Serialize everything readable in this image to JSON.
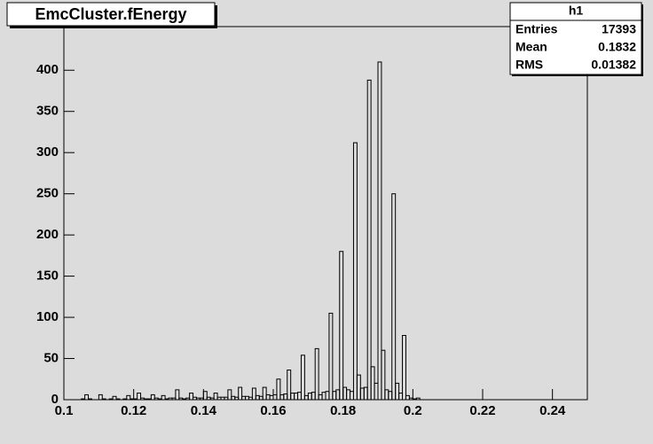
{
  "chart_data": {
    "type": "histogram",
    "title": "EmcCluster.fEnergy",
    "bins": [
      0.1,
      0.101,
      0.102,
      0.103,
      0.104,
      0.105,
      0.106,
      0.107,
      0.108,
      0.109,
      0.11,
      0.111,
      0.112,
      0.113,
      0.114,
      0.115,
      0.116,
      0.117,
      0.118,
      0.119,
      0.12,
      0.121,
      0.122,
      0.123,
      0.124,
      0.125,
      0.126,
      0.127,
      0.128,
      0.129,
      0.13,
      0.131,
      0.132,
      0.133,
      0.134,
      0.135,
      0.136,
      0.137,
      0.138,
      0.139,
      0.14,
      0.141,
      0.142,
      0.143,
      0.144,
      0.145,
      0.146,
      0.147,
      0.148,
      0.149,
      0.15,
      0.151,
      0.152,
      0.153,
      0.154,
      0.155,
      0.156,
      0.157,
      0.158,
      0.159,
      0.16,
      0.161,
      0.162,
      0.163,
      0.164,
      0.165,
      0.166,
      0.167,
      0.168,
      0.169,
      0.17,
      0.171,
      0.172,
      0.173,
      0.174,
      0.175,
      0.176,
      0.177,
      0.178,
      0.179,
      0.18,
      0.181,
      0.182,
      0.183,
      0.184,
      0.185,
      0.186,
      0.187,
      0.188,
      0.189,
      0.19,
      0.191,
      0.192,
      0.193,
      0.194,
      0.195,
      0.196,
      0.197,
      0.198,
      0.199,
      0.2,
      0.201,
      0.202,
      0.203,
      0.204,
      0.205
    ],
    "counts": [
      0,
      0,
      0,
      0,
      0,
      1,
      6,
      1,
      0,
      0,
      6,
      1,
      0,
      1,
      4,
      1,
      0,
      1,
      5,
      1,
      1,
      8,
      2,
      1,
      1,
      6,
      2,
      1,
      5,
      1,
      2,
      2,
      12,
      2,
      1,
      2,
      8,
      3,
      2,
      2,
      10,
      3,
      2,
      8,
      3,
      3,
      3,
      12,
      4,
      3,
      15,
      4,
      4,
      3,
      14,
      5,
      4,
      15,
      6,
      5,
      6,
      25,
      6,
      7,
      36,
      8,
      8,
      9,
      54,
      5,
      8,
      9,
      62,
      6,
      9,
      10,
      105,
      10,
      12,
      180,
      15,
      12,
      10,
      312,
      30,
      14,
      15,
      388,
      40,
      20,
      410,
      60,
      12,
      10,
      250,
      20,
      8,
      78,
      5,
      2,
      1,
      2,
      0,
      0,
      0
    ],
    "color": "#000000",
    "xlim": [
      0.1,
      0.25
    ],
    "xticks": [
      0.1,
      0.12,
      0.14,
      0.16,
      0.18,
      0.2,
      0.22,
      0.24
    ],
    "ylim": [
      0,
      453
    ],
    "yticks": [
      0,
      50,
      100,
      150,
      200,
      250,
      300,
      350,
      400
    ],
    "stats": {
      "name": "h1",
      "rows": [
        [
          "Entries",
          17393
        ],
        [
          "Mean",
          0.1832
        ],
        [
          "RMS",
          0.01382
        ]
      ]
    }
  }
}
